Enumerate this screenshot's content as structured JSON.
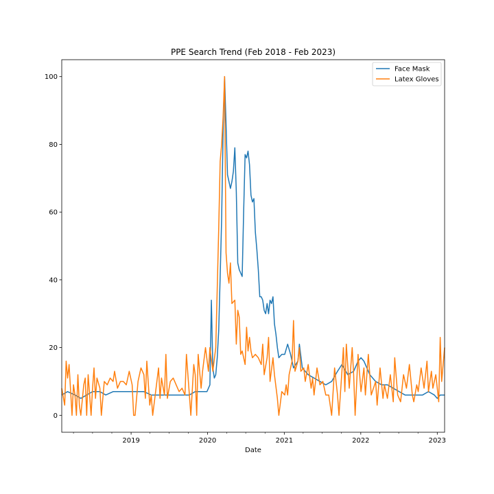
{
  "chart_data": {
    "type": "line",
    "title": "PPE Search Trend (Feb 2018 - Feb 2023)",
    "xlabel": "Date",
    "ylabel": "",
    "xlim": [
      "2018-02-04",
      "2023-02-05"
    ],
    "ylim": [
      -5,
      105
    ],
    "x_ticks": [
      "2019",
      "2020",
      "2021",
      "2022",
      "2023"
    ],
    "x_tick_dates": [
      "2019-01-01",
      "2020-01-01",
      "2021-01-01",
      "2022-01-01",
      "2023-01-01"
    ],
    "y_ticks": [
      0,
      20,
      40,
      60,
      80,
      100
    ],
    "legend_position": "top-right",
    "series": [
      {
        "name": "Face Mask",
        "color": "#1f77b4",
        "points": [
          [
            "2018-02-04",
            6
          ],
          [
            "2018-03-04",
            7
          ],
          [
            "2018-04-08",
            6
          ],
          [
            "2018-05-06",
            5
          ],
          [
            "2018-06-03",
            6
          ],
          [
            "2018-07-01",
            7
          ],
          [
            "2018-08-05",
            7
          ],
          [
            "2018-09-02",
            6
          ],
          [
            "2018-10-07",
            7
          ],
          [
            "2018-11-04",
            7
          ],
          [
            "2018-12-02",
            7
          ],
          [
            "2019-01-06",
            7
          ],
          [
            "2019-02-03",
            7
          ],
          [
            "2019-03-03",
            7
          ],
          [
            "2019-04-07",
            6
          ],
          [
            "2019-05-05",
            6
          ],
          [
            "2019-06-02",
            6
          ],
          [
            "2019-07-07",
            6
          ],
          [
            "2019-08-04",
            6
          ],
          [
            "2019-09-01",
            6
          ],
          [
            "2019-10-06",
            6
          ],
          [
            "2019-11-03",
            7
          ],
          [
            "2019-12-01",
            7
          ],
          [
            "2019-12-29",
            7
          ],
          [
            "2020-01-12",
            9
          ],
          [
            "2020-01-19",
            34
          ],
          [
            "2020-01-26",
            14
          ],
          [
            "2020-02-02",
            11
          ],
          [
            "2020-02-09",
            12
          ],
          [
            "2020-02-16",
            17
          ],
          [
            "2020-02-23",
            25
          ],
          [
            "2020-03-01",
            41
          ],
          [
            "2020-03-08",
            58
          ],
          [
            "2020-03-15",
            84
          ],
          [
            "2020-03-22",
            100
          ],
          [
            "2020-03-29",
            86
          ],
          [
            "2020-04-05",
            71
          ],
          [
            "2020-04-12",
            69
          ],
          [
            "2020-04-19",
            67
          ],
          [
            "2020-04-26",
            69
          ],
          [
            "2020-05-03",
            72
          ],
          [
            "2020-05-10",
            79
          ],
          [
            "2020-05-17",
            66
          ],
          [
            "2020-05-24",
            45
          ],
          [
            "2020-05-31",
            43
          ],
          [
            "2020-06-07",
            42
          ],
          [
            "2020-06-14",
            41
          ],
          [
            "2020-06-21",
            60
          ],
          [
            "2020-06-28",
            77
          ],
          [
            "2020-07-05",
            76
          ],
          [
            "2020-07-12",
            78
          ],
          [
            "2020-07-19",
            74
          ],
          [
            "2020-07-26",
            65
          ],
          [
            "2020-08-02",
            63
          ],
          [
            "2020-08-09",
            64
          ],
          [
            "2020-08-16",
            54
          ],
          [
            "2020-08-23",
            49
          ],
          [
            "2020-08-30",
            43
          ],
          [
            "2020-09-06",
            35
          ],
          [
            "2020-09-13",
            35
          ],
          [
            "2020-09-20",
            34
          ],
          [
            "2020-09-27",
            31
          ],
          [
            "2020-10-04",
            30
          ],
          [
            "2020-10-11",
            33
          ],
          [
            "2020-10-18",
            30
          ],
          [
            "2020-10-25",
            34
          ],
          [
            "2020-11-01",
            33
          ],
          [
            "2020-11-08",
            35
          ],
          [
            "2020-11-15",
            27
          ],
          [
            "2020-11-22",
            24
          ],
          [
            "2020-11-29",
            20
          ],
          [
            "2020-12-06",
            17
          ],
          [
            "2020-12-20",
            18
          ],
          [
            "2021-01-03",
            18
          ],
          [
            "2021-01-17",
            21
          ],
          [
            "2021-01-31",
            18
          ],
          [
            "2021-02-14",
            14
          ],
          [
            "2021-03-07",
            16
          ],
          [
            "2021-03-14",
            21
          ],
          [
            "2021-03-28",
            14
          ],
          [
            "2021-04-25",
            12
          ],
          [
            "2021-05-23",
            11
          ],
          [
            "2021-06-20",
            10
          ],
          [
            "2021-07-18",
            9
          ],
          [
            "2021-08-15",
            10
          ],
          [
            "2021-09-12",
            13
          ],
          [
            "2021-10-03",
            15
          ],
          [
            "2021-10-31",
            12
          ],
          [
            "2021-11-28",
            13
          ],
          [
            "2021-12-19",
            16
          ],
          [
            "2022-01-02",
            17
          ],
          [
            "2022-01-16",
            16
          ],
          [
            "2022-02-13",
            12
          ],
          [
            "2022-03-13",
            10
          ],
          [
            "2022-04-10",
            9
          ],
          [
            "2022-05-08",
            9
          ],
          [
            "2022-06-05",
            8
          ],
          [
            "2022-07-03",
            7
          ],
          [
            "2022-07-31",
            6
          ],
          [
            "2022-08-28",
            6
          ],
          [
            "2022-09-25",
            6
          ],
          [
            "2022-10-23",
            6
          ],
          [
            "2022-11-20",
            7
          ],
          [
            "2022-12-18",
            6
          ],
          [
            "2023-01-01",
            5
          ],
          [
            "2023-01-15",
            6
          ],
          [
            "2023-02-05",
            6
          ]
        ]
      },
      {
        "name": "Latex Gloves",
        "color": "#ff7f0e",
        "points": [
          [
            "2018-02-04",
            8
          ],
          [
            "2018-02-18",
            3
          ],
          [
            "2018-02-25",
            16
          ],
          [
            "2018-03-04",
            11
          ],
          [
            "2018-03-11",
            15
          ],
          [
            "2018-03-25",
            0
          ],
          [
            "2018-04-01",
            9
          ],
          [
            "2018-04-08",
            6
          ],
          [
            "2018-04-15",
            0
          ],
          [
            "2018-04-22",
            12
          ],
          [
            "2018-04-29",
            3
          ],
          [
            "2018-05-06",
            0
          ],
          [
            "2018-05-20",
            9
          ],
          [
            "2018-05-27",
            11
          ],
          [
            "2018-06-03",
            0
          ],
          [
            "2018-06-10",
            12
          ],
          [
            "2018-06-24",
            0
          ],
          [
            "2018-07-01",
            8
          ],
          [
            "2018-07-08",
            14
          ],
          [
            "2018-07-15",
            5
          ],
          [
            "2018-07-22",
            11
          ],
          [
            "2018-08-05",
            8
          ],
          [
            "2018-08-12",
            0
          ],
          [
            "2018-08-26",
            10
          ],
          [
            "2018-09-09",
            9
          ],
          [
            "2018-09-23",
            11
          ],
          [
            "2018-10-07",
            10
          ],
          [
            "2018-10-14",
            13
          ],
          [
            "2018-10-28",
            8
          ],
          [
            "2018-11-11",
            10
          ],
          [
            "2018-11-25",
            10
          ],
          [
            "2018-12-09",
            9
          ],
          [
            "2018-12-23",
            13
          ],
          [
            "2019-01-06",
            9
          ],
          [
            "2019-01-13",
            0
          ],
          [
            "2019-01-20",
            0
          ],
          [
            "2019-02-03",
            10
          ],
          [
            "2019-02-17",
            14
          ],
          [
            "2019-03-03",
            12
          ],
          [
            "2019-03-10",
            5
          ],
          [
            "2019-03-17",
            16
          ],
          [
            "2019-03-31",
            3
          ],
          [
            "2019-04-07",
            6
          ],
          [
            "2019-04-14",
            0
          ],
          [
            "2019-04-28",
            7
          ],
          [
            "2019-05-12",
            14
          ],
          [
            "2019-05-19",
            5
          ],
          [
            "2019-05-26",
            11
          ],
          [
            "2019-06-09",
            6
          ],
          [
            "2019-06-16",
            18
          ],
          [
            "2019-06-23",
            5
          ],
          [
            "2019-07-07",
            10
          ],
          [
            "2019-07-21",
            11
          ],
          [
            "2019-08-04",
            9
          ],
          [
            "2019-08-18",
            7
          ],
          [
            "2019-09-01",
            8
          ],
          [
            "2019-09-15",
            6
          ],
          [
            "2019-09-22",
            18
          ],
          [
            "2019-10-06",
            6
          ],
          [
            "2019-10-13",
            0
          ],
          [
            "2019-10-27",
            15
          ],
          [
            "2019-11-03",
            12
          ],
          [
            "2019-11-10",
            0
          ],
          [
            "2019-11-17",
            18
          ],
          [
            "2019-12-01",
            8
          ],
          [
            "2019-12-08",
            13
          ],
          [
            "2019-12-22",
            20
          ],
          [
            "2020-01-05",
            13
          ],
          [
            "2020-01-12",
            20
          ],
          [
            "2020-01-26",
            13
          ],
          [
            "2020-02-09",
            20
          ],
          [
            "2020-02-23",
            55
          ],
          [
            "2020-03-01",
            75
          ],
          [
            "2020-03-08",
            80
          ],
          [
            "2020-03-15",
            88
          ],
          [
            "2020-03-22",
            100
          ],
          [
            "2020-03-29",
            48
          ],
          [
            "2020-04-05",
            42
          ],
          [
            "2020-04-12",
            39
          ],
          [
            "2020-04-19",
            45
          ],
          [
            "2020-04-26",
            33
          ],
          [
            "2020-05-10",
            34
          ],
          [
            "2020-05-17",
            21
          ],
          [
            "2020-05-24",
            31
          ],
          [
            "2020-05-31",
            29
          ],
          [
            "2020-06-07",
            18
          ],
          [
            "2020-06-14",
            19
          ],
          [
            "2020-06-21",
            17
          ],
          [
            "2020-06-28",
            15
          ],
          [
            "2020-07-05",
            26
          ],
          [
            "2020-07-12",
            19
          ],
          [
            "2020-07-19",
            23
          ],
          [
            "2020-07-26",
            19
          ],
          [
            "2020-08-02",
            17
          ],
          [
            "2020-08-16",
            18
          ],
          [
            "2020-08-30",
            17
          ],
          [
            "2020-09-13",
            15
          ],
          [
            "2020-09-20",
            21
          ],
          [
            "2020-09-27",
            12
          ],
          [
            "2020-10-11",
            17
          ],
          [
            "2020-10-18",
            23
          ],
          [
            "2020-10-25",
            10
          ],
          [
            "2020-11-08",
            17
          ],
          [
            "2020-11-15",
            12
          ],
          [
            "2020-11-29",
            5
          ],
          [
            "2020-12-06",
            0
          ],
          [
            "2020-12-20",
            7
          ],
          [
            "2021-01-03",
            6
          ],
          [
            "2021-01-10",
            9
          ],
          [
            "2021-01-17",
            6
          ],
          [
            "2021-01-24",
            12
          ],
          [
            "2021-02-07",
            16
          ],
          [
            "2021-02-14",
            28
          ],
          [
            "2021-02-21",
            13
          ],
          [
            "2021-03-07",
            16
          ],
          [
            "2021-03-14",
            20
          ],
          [
            "2021-03-21",
            13
          ],
          [
            "2021-04-04",
            14
          ],
          [
            "2021-04-11",
            10
          ],
          [
            "2021-04-25",
            15
          ],
          [
            "2021-05-09",
            8
          ],
          [
            "2021-05-16",
            11
          ],
          [
            "2021-05-23",
            6
          ],
          [
            "2021-06-06",
            14
          ],
          [
            "2021-06-20",
            9
          ],
          [
            "2021-07-04",
            10
          ],
          [
            "2021-07-18",
            6
          ],
          [
            "2021-08-01",
            6
          ],
          [
            "2021-08-15",
            0
          ],
          [
            "2021-08-29",
            14
          ],
          [
            "2021-09-12",
            6
          ],
          [
            "2021-09-19",
            0
          ],
          [
            "2021-10-03",
            13
          ],
          [
            "2021-10-10",
            20
          ],
          [
            "2021-10-17",
            7
          ],
          [
            "2021-10-24",
            21
          ],
          [
            "2021-11-07",
            8
          ],
          [
            "2021-11-21",
            20
          ],
          [
            "2021-11-28",
            12
          ],
          [
            "2021-12-05",
            0
          ],
          [
            "2021-12-19",
            18
          ],
          [
            "2022-01-02",
            7
          ],
          [
            "2022-01-16",
            14
          ],
          [
            "2022-01-23",
            6
          ],
          [
            "2022-02-06",
            18
          ],
          [
            "2022-02-20",
            6
          ],
          [
            "2022-03-13",
            10
          ],
          [
            "2022-03-20",
            3
          ],
          [
            "2022-04-03",
            14
          ],
          [
            "2022-04-17",
            5
          ],
          [
            "2022-04-24",
            9
          ],
          [
            "2022-05-08",
            5
          ],
          [
            "2022-05-22",
            12
          ],
          [
            "2022-06-05",
            4
          ],
          [
            "2022-06-12",
            17
          ],
          [
            "2022-06-26",
            6
          ],
          [
            "2022-07-10",
            4
          ],
          [
            "2022-07-24",
            12
          ],
          [
            "2022-08-07",
            8
          ],
          [
            "2022-08-21",
            15
          ],
          [
            "2022-09-04",
            6
          ],
          [
            "2022-09-11",
            4
          ],
          [
            "2022-09-25",
            9
          ],
          [
            "2022-10-02",
            7
          ],
          [
            "2022-10-16",
            14
          ],
          [
            "2022-10-30",
            8
          ],
          [
            "2022-11-13",
            16
          ],
          [
            "2022-11-20",
            7
          ],
          [
            "2022-12-04",
            13
          ],
          [
            "2022-12-11",
            8
          ],
          [
            "2022-12-25",
            12
          ],
          [
            "2023-01-08",
            4
          ],
          [
            "2023-01-15",
            23
          ],
          [
            "2023-01-22",
            10
          ],
          [
            "2023-02-05",
            20
          ]
        ]
      }
    ]
  }
}
